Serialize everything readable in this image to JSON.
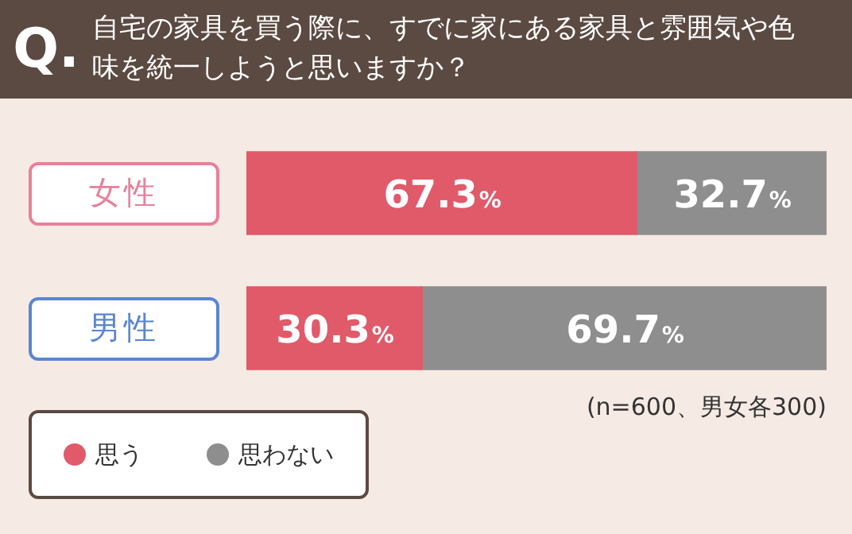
{
  "chart_data": {
    "type": "bar",
    "orientation": "horizontal",
    "stacked": true,
    "title": "自宅の家具を買う際に、すでに家にある家具と雰囲気や色味を統一しようと思いますか？",
    "categories": [
      "女性",
      "男性"
    ],
    "series": [
      {
        "name": "思う",
        "color": "#e05a6a",
        "values": [
          67.3,
          30.3
        ],
        "value_labels": [
          "67.3%",
          "30.3%"
        ]
      },
      {
        "name": "思わない",
        "color": "#8e8e8e",
        "values": [
          32.7,
          69.7
        ],
        "value_labels": [
          "32.7%",
          "69.7%"
        ]
      }
    ],
    "annotations": [
      "Q.",
      "(n=600、男女各300)"
    ],
    "legend": "bottom left",
    "grid": false,
    "tick_labels": "y"
  }
}
